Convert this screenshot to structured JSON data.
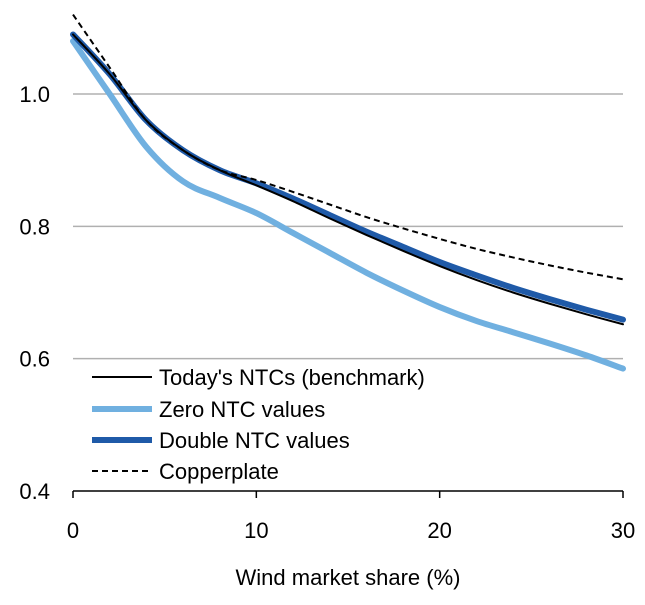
{
  "chart_data": {
    "type": "line",
    "title": "",
    "xlabel": "Wind market share (%)",
    "ylabel": "",
    "xlim": [
      0,
      30
    ],
    "ylim": [
      0.4,
      1.1
    ],
    "x_ticks": [
      0,
      10,
      20,
      30
    ],
    "x_tick_labels": [
      "0",
      "10",
      "20",
      "30"
    ],
    "y_ticks": [
      0.4,
      0.6,
      0.8,
      1.0
    ],
    "y_tick_labels": [
      "0.4",
      "0.6",
      "0.8",
      "1.0"
    ],
    "grid": "horizontal",
    "legend_position": "bottom-left",
    "series": [
      {
        "name": "Today's NTCs (benchmark)",
        "color": "#000000",
        "style": "solid-thin",
        "points": [
          [
            0,
            1.09
          ],
          [
            2,
            1.03
          ],
          [
            4,
            0.96
          ],
          [
            6,
            0.915
          ],
          [
            8,
            0.885
          ],
          [
            10,
            0.862
          ],
          [
            12,
            0.838
          ],
          [
            14,
            0.812
          ],
          [
            16,
            0.787
          ],
          [
            18,
            0.763
          ],
          [
            20,
            0.74
          ],
          [
            22,
            0.719
          ],
          [
            24,
            0.7
          ],
          [
            26,
            0.683
          ],
          [
            28,
            0.667
          ],
          [
            30,
            0.652
          ]
        ]
      },
      {
        "name": "Zero NTC values",
        "color": "#70b0e0",
        "style": "solid-thick",
        "points": [
          [
            0,
            1.08
          ],
          [
            2,
            1.0
          ],
          [
            4,
            0.92
          ],
          [
            6,
            0.868
          ],
          [
            8,
            0.843
          ],
          [
            10,
            0.82
          ],
          [
            12,
            0.79
          ],
          [
            14,
            0.76
          ],
          [
            16,
            0.73
          ],
          [
            18,
            0.703
          ],
          [
            20,
            0.678
          ],
          [
            22,
            0.657
          ],
          [
            24,
            0.64
          ],
          [
            26,
            0.623
          ],
          [
            28,
            0.605
          ],
          [
            30,
            0.585
          ]
        ]
      },
      {
        "name": "Double NTC values",
        "color": "#1f5aa8",
        "style": "solid-thick",
        "points": [
          [
            0,
            1.09
          ],
          [
            2,
            1.03
          ],
          [
            4,
            0.96
          ],
          [
            6,
            0.915
          ],
          [
            8,
            0.885
          ],
          [
            10,
            0.865
          ],
          [
            12,
            0.842
          ],
          [
            14,
            0.817
          ],
          [
            16,
            0.792
          ],
          [
            18,
            0.769
          ],
          [
            20,
            0.746
          ],
          [
            22,
            0.726
          ],
          [
            24,
            0.707
          ],
          [
            26,
            0.69
          ],
          [
            28,
            0.674
          ],
          [
            30,
            0.659
          ]
        ]
      },
      {
        "name": "Copperplate",
        "color": "#000000",
        "style": "dashed",
        "points": [
          [
            0,
            1.12
          ],
          [
            2,
            1.04
          ],
          [
            4,
            0.96
          ],
          [
            6,
            0.915
          ],
          [
            8,
            0.885
          ],
          [
            10,
            0.87
          ],
          [
            12,
            0.852
          ],
          [
            14,
            0.833
          ],
          [
            16,
            0.814
          ],
          [
            18,
            0.797
          ],
          [
            20,
            0.781
          ],
          [
            22,
            0.766
          ],
          [
            24,
            0.753
          ],
          [
            26,
            0.741
          ],
          [
            28,
            0.73
          ],
          [
            30,
            0.72
          ]
        ]
      }
    ]
  }
}
